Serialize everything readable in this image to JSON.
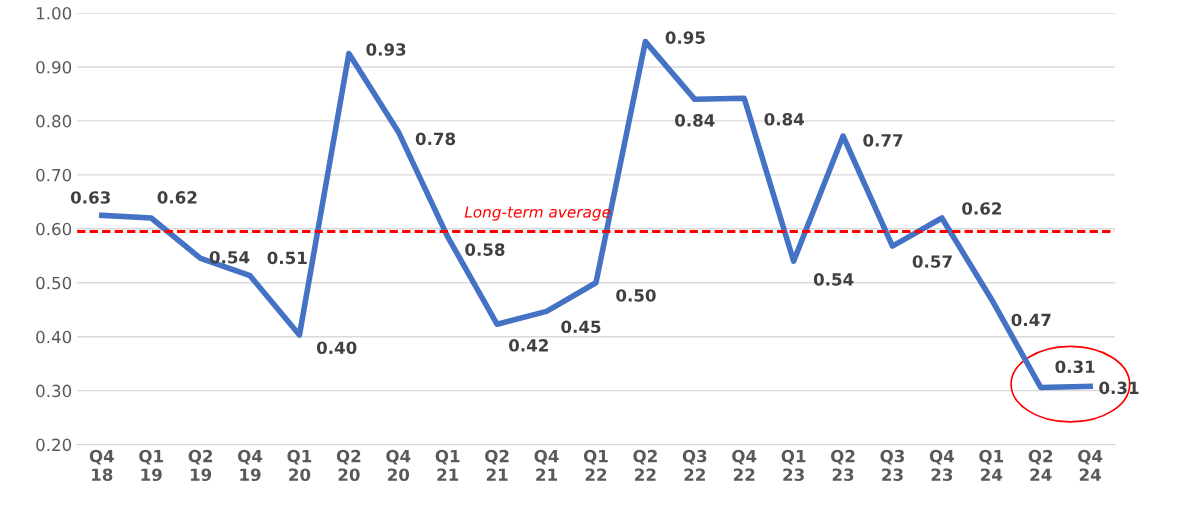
{
  "chart_data": {
    "type": "line",
    "categories": [
      "Q4\n18",
      "Q1\n19",
      "Q2\n19",
      "Q4\n19",
      "Q1\n20",
      "Q2\n20",
      "Q4\n20",
      "Q1\n21",
      "Q2\n21",
      "Q4\n21",
      "Q1\n22",
      "Q2\n22",
      "Q3\n22",
      "Q4\n22",
      "Q1\n23",
      "Q2\n23",
      "Q3\n23",
      "Q4\n23",
      "Q1\n24",
      "Q2\n24",
      "Q4\n24"
    ],
    "series": [
      {
        "color": "#4472c4",
        "values": [
          0.625,
          0.62,
          0.545,
          0.513,
          0.403,
          0.925,
          0.78,
          0.585,
          0.423,
          0.447,
          0.5,
          0.947,
          0.84,
          0.842,
          0.54,
          0.772,
          0.568,
          0.62,
          0.47,
          0.306,
          0.308
        ],
        "value_labels": [
          "0.63",
          "0.62",
          "0.54",
          "0.51",
          "0.40",
          "0.93",
          "0.78",
          "0.58",
          "0.42",
          "0.45",
          "0.50",
          "0.95",
          "0.84",
          "0.84",
          "0.54",
          "0.77",
          "0.57",
          "0.62",
          "0.47",
          "0.31",
          "0.31"
        ]
      }
    ],
    "ylim": [
      0.2,
      1.0
    ],
    "yticks": [
      {
        "value": 0.2,
        "label": "0.20"
      },
      {
        "value": 0.3,
        "label": "0.30"
      },
      {
        "value": 0.4,
        "label": "0.40"
      },
      {
        "value": 0.5,
        "label": "0.50"
      },
      {
        "value": 0.6,
        "label": "0.60"
      },
      {
        "value": 0.7,
        "label": "0.70"
      },
      {
        "value": 0.8,
        "label": "0.80"
      },
      {
        "value": 0.9,
        "label": "0.90"
      },
      {
        "value": 1.0,
        "label": "1.00"
      }
    ],
    "grid": "y",
    "marker": "none",
    "line_style": "solid",
    "ref_lines": [
      {
        "axis": "y",
        "value": 0.595,
        "label": "Long-term average",
        "color": "#ff0000",
        "line_style": "dashed"
      }
    ]
  }
}
